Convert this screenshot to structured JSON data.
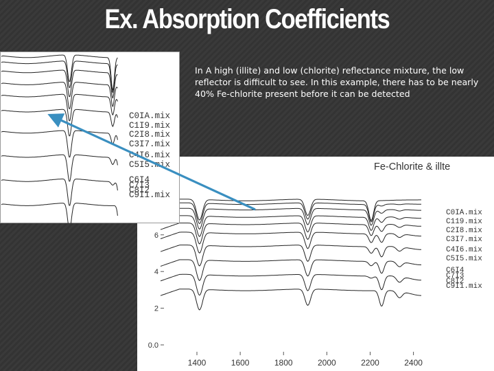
{
  "slide": {
    "title": "Ex. Absorption Coefficients",
    "caption": "In A high (illite) and low (chlorite) reflectance mixture, the low reflector is difficult to see.  In this example, there has to be nearly 40% Fe-chlorite present before it can be detected"
  },
  "colors": {
    "background": "#363636",
    "chart_background": "#ffffff",
    "line": "#222222",
    "arrow": "#3a8fc0",
    "text": "#ffffff"
  },
  "chart_data": [
    {
      "type": "line",
      "title": "Fe-Chlorite & illte",
      "xlabel": "",
      "ylabel": "",
      "xlim": [
        1200,
        2500
      ],
      "ylim": [
        0,
        8
      ],
      "x_ticks": [
        1400,
        1600,
        1800,
        2000,
        2200,
        2400
      ],
      "y_ticks": [
        {
          "value": 0,
          "label": "0.0"
        },
        {
          "value": 2,
          "label": "2"
        },
        {
          "value": 4,
          "label": "4"
        },
        {
          "value": 6,
          "label": "6"
        }
      ],
      "series_labels": [
        "C0IA.mix",
        "C119.mix",
        "C2I8.mix",
        "C3I7.mix",
        "C4I6.mix",
        "C5I5.mix",
        "C6I4",
        "C7I3",
        "C8I2",
        "C9I1.mix"
      ],
      "series": [
        {
          "name": "C0IA.mix",
          "offset": 7.9,
          "w1400": 0.9,
          "w1900": 0.85,
          "w2200": 0.9,
          "w2250": 0.0,
          "w2340": 0.0
        },
        {
          "name": "C119.mix",
          "offset": 7.7,
          "w1400": 0.9,
          "w1900": 0.85,
          "w2200": 0.8,
          "w2250": 0.1,
          "w2340": 0.05
        },
        {
          "name": "C2I8.mix",
          "offset": 7.4,
          "w1400": 0.9,
          "w1900": 0.85,
          "w2200": 0.7,
          "w2250": 0.2,
          "w2340": 0.1
        },
        {
          "name": "C3I7.mix",
          "offset": 7.0,
          "w1400": 0.9,
          "w1900": 0.85,
          "w2200": 0.6,
          "w2250": 0.3,
          "w2340": 0.15
        },
        {
          "name": "C4I6.mix",
          "offset": 6.6,
          "w1400": 0.9,
          "w1900": 0.85,
          "w2200": 0.5,
          "w2250": 0.4,
          "w2340": 0.2
        },
        {
          "name": "C5I5.mix",
          "offset": 6.1,
          "w1400": 0.9,
          "w1900": 0.85,
          "w2200": 0.4,
          "w2250": 0.5,
          "w2340": 0.25
        },
        {
          "name": "C6I4",
          "offset": 5.4,
          "w1400": 0.9,
          "w1900": 0.85,
          "w2200": 0.3,
          "w2250": 0.6,
          "w2340": 0.3
        },
        {
          "name": "C7I3",
          "offset": 4.6,
          "w1400": 0.9,
          "w1900": 0.85,
          "w2200": 0.2,
          "w2250": 0.7,
          "w2340": 0.35
        },
        {
          "name": "C8I2",
          "offset": 3.8,
          "w1400": 0.9,
          "w1900": 0.85,
          "w2200": 0.1,
          "w2250": 0.8,
          "w2340": 0.4
        },
        {
          "name": "C9I1.mix",
          "offset": 3.0,
          "w1400": 0.9,
          "w1900": 0.85,
          "w2200": 0.0,
          "w2250": 0.9,
          "w2340": 0.45
        }
      ]
    },
    {
      "type": "line",
      "title": "",
      "xlabel": "",
      "ylabel": "",
      "note": "inset detail of the same mixture spectra",
      "series_labels": [
        "C0IA.mix",
        "C1I9.mix",
        "C2I8.mix",
        "C3I7.mix",
        "C4I6.mix",
        "C5I5.mix",
        "C6I4",
        "C7I3",
        "C8I2",
        "C9I1.mix"
      ]
    }
  ]
}
